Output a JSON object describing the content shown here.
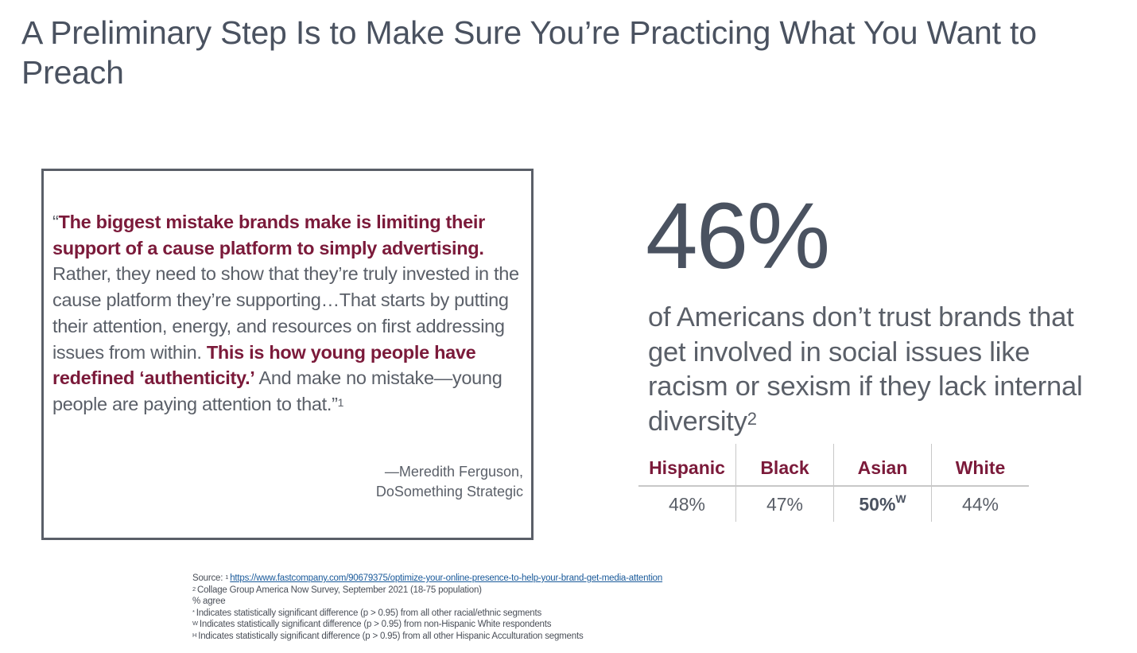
{
  "slide": {
    "title": "A Preliminary Step Is to Make Sure You’re Practicing What You Want to Preach"
  },
  "quote": {
    "open_mark": "“",
    "segments": [
      {
        "text": "The biggest mistake brands make is limiting their support of a cause platform to simply advertising.",
        "emphasis": true
      },
      {
        "text": " Rather, they need to show that they’re truly invested in the cause platform they’re supporting…That starts by putting their attention, energy, and resources on first addressing issues from within. ",
        "emphasis": false
      },
      {
        "text": "This is how young people have redefined ‘authenticity.’",
        "emphasis": true
      },
      {
        "text": " And make no mistake—young people are paying attention to that.”",
        "emphasis": false
      }
    ],
    "footnote_ref": "1",
    "attribution_name": "—Meredith Ferguson,",
    "attribution_org": "DoSomething Strategic"
  },
  "stat": {
    "value": "46%",
    "description": "of Americans don’t trust brands that get involved in social issues like racism or sexism if they lack internal diversity",
    "footnote_ref": "2"
  },
  "segments_table": {
    "headers": [
      "Hispanic",
      "Black",
      "Asian",
      "White"
    ],
    "values": [
      {
        "value": "48%",
        "sig": "",
        "bold": false
      },
      {
        "value": "47%",
        "sig": "",
        "bold": false
      },
      {
        "value": "50%",
        "sig": "W",
        "bold": true
      },
      {
        "value": "44%",
        "sig": "",
        "bold": false
      }
    ]
  },
  "footnotes": {
    "source_label": "Source:",
    "source_ref": "1",
    "source_link": "https://www.fastcompany.com/90679375/optimize-your-online-presence-to-help-your-brand-get-media-attention",
    "lines": [
      {
        "ref": "2",
        "text": "Collage Group America Now Survey, September 2021 (18-75 population)"
      },
      {
        "ref": "",
        "text": "% agree"
      },
      {
        "ref": "*",
        "text": "Indicates statistically significant difference (p > 0.95) from all other racial/ethnic segments"
      },
      {
        "ref": "W",
        "text": "Indicates statistically significant difference (p > 0.95) from non-Hispanic White respondents"
      },
      {
        "ref": "H",
        "text": "Indicates statistically significant difference (p > 0.95) from all other Hispanic Acculturation segments"
      }
    ]
  },
  "colors": {
    "accent": "#7b1a3a",
    "text": "#4a5260",
    "border": "#5a5f68",
    "link": "#1a5a9a"
  }
}
